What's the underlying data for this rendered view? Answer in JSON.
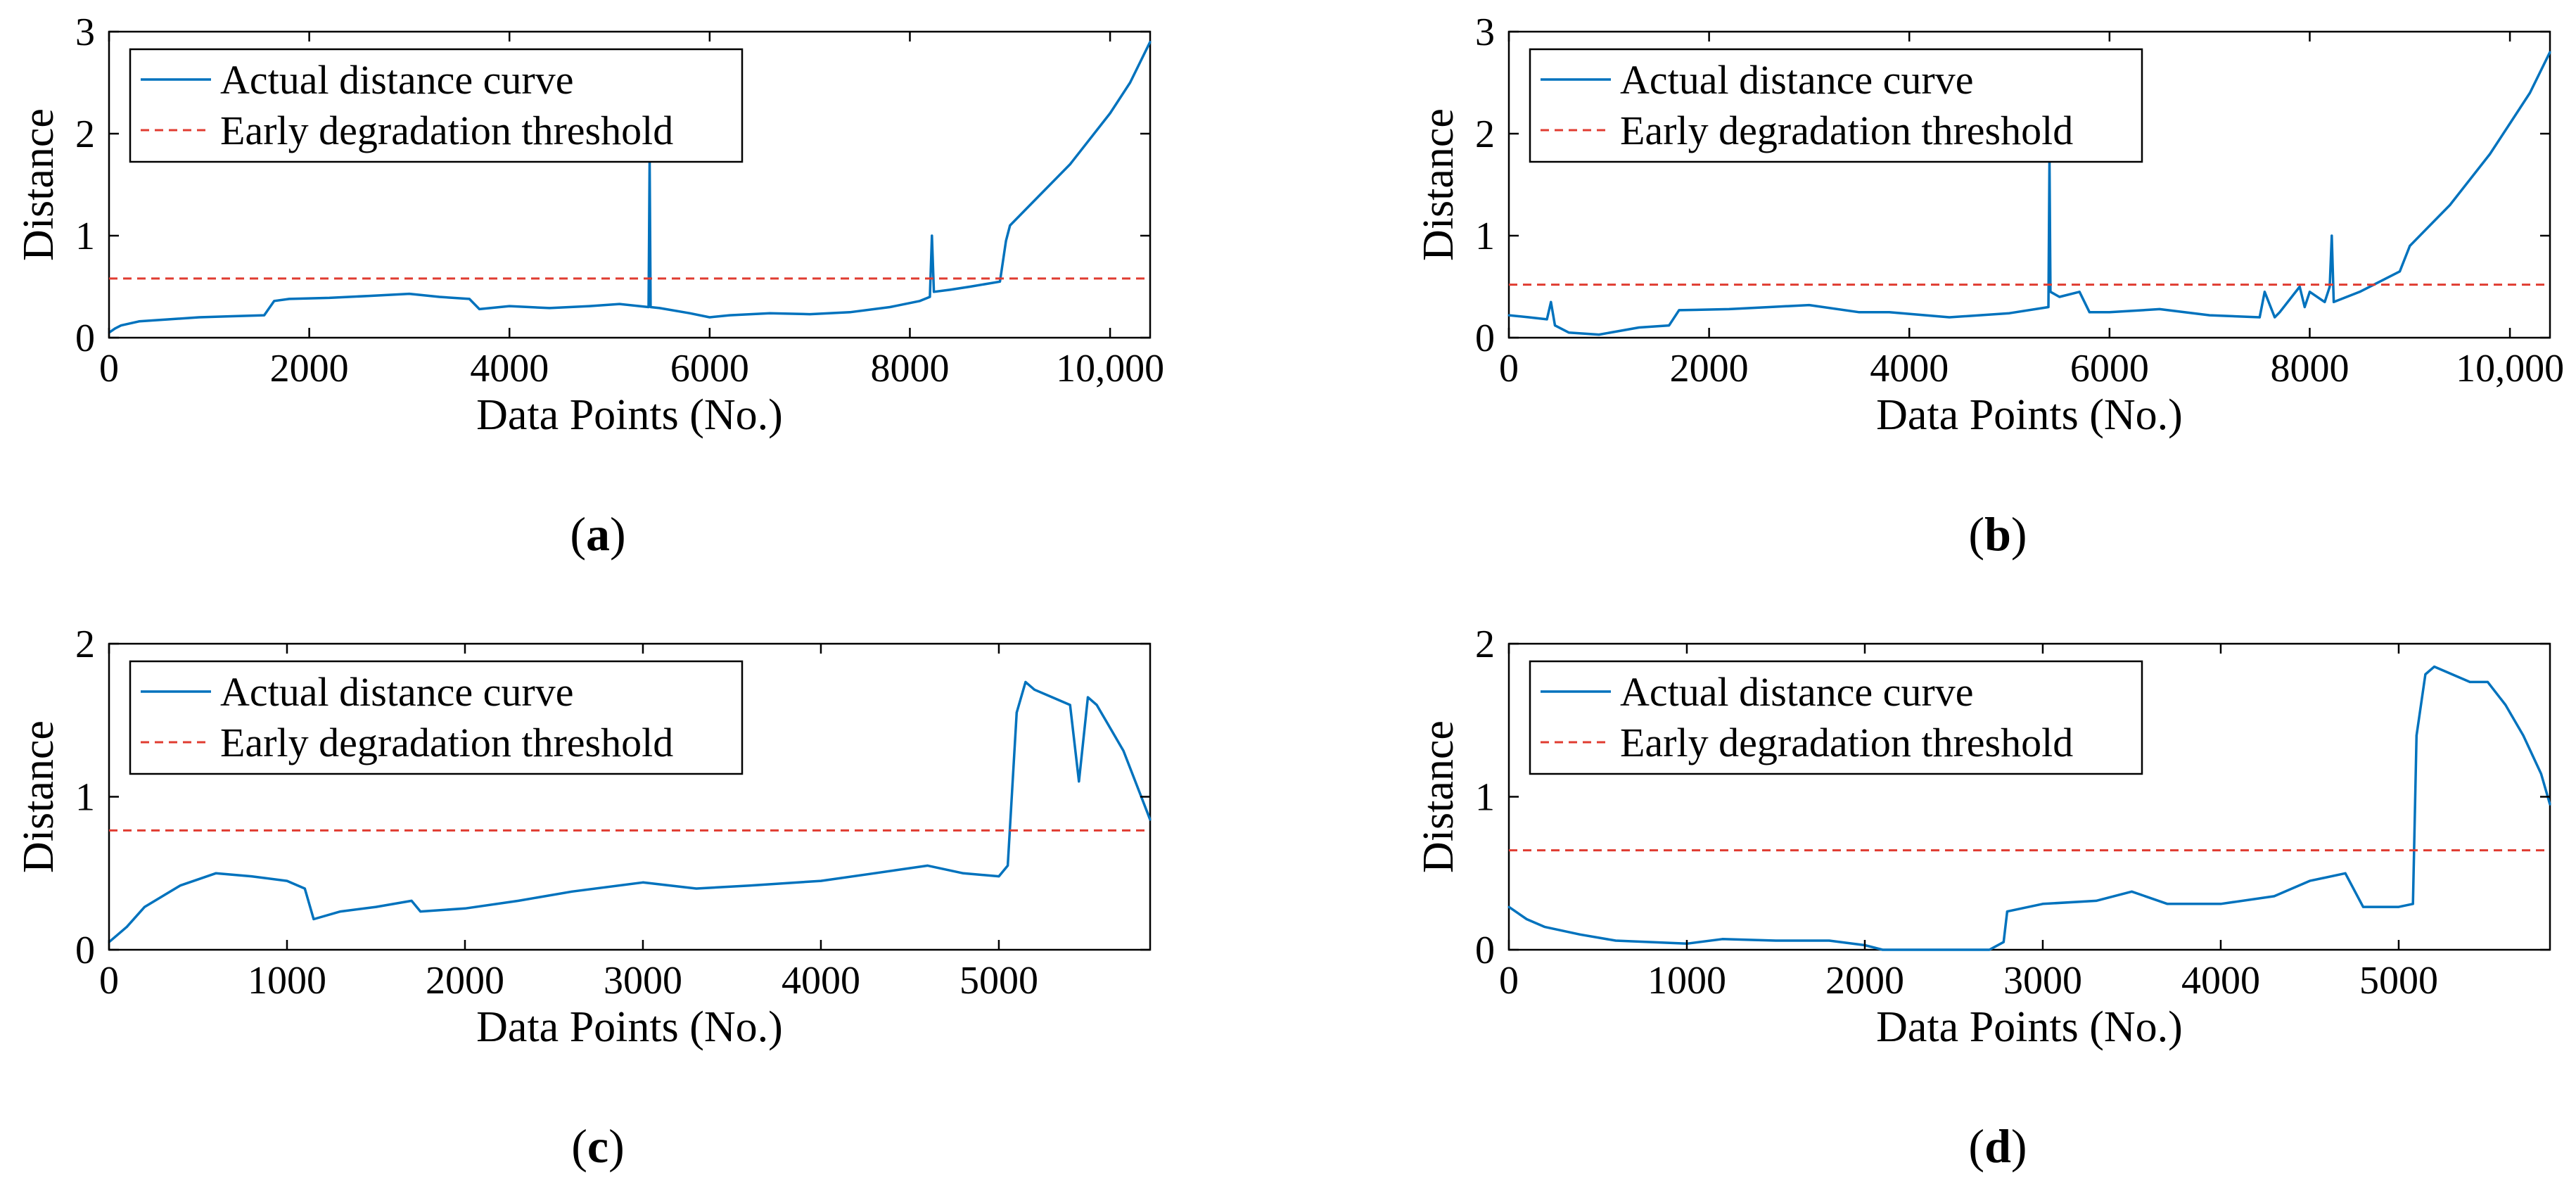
{
  "legend": {
    "actual_label": "Actual distance curve",
    "threshold_label": "Early degradation threshold"
  },
  "colors": {
    "curve": "#0072BD",
    "threshold": "#E03C31",
    "axes": "#000000"
  },
  "chart_data": [
    {
      "id": "a",
      "type": "line",
      "caption": "a",
      "xlabel": "Data Points (No.)",
      "ylabel": "Distance",
      "xlim": [
        0,
        10400
      ],
      "ylim": [
        0,
        3
      ],
      "xticks": [
        0,
        2000,
        4000,
        6000,
        8000,
        10000
      ],
      "xticklabels": [
        "0",
        "2000",
        "4000",
        "6000",
        "8000",
        "10,000"
      ],
      "yticks": [
        0,
        1,
        2,
        3
      ],
      "yticklabels": [
        "0",
        "1",
        "2",
        "3"
      ],
      "threshold": 0.58,
      "series": [
        {
          "name": "Actual distance curve",
          "x": [
            0,
            60,
            120,
            300,
            600,
            900,
            1200,
            1550,
            1650,
            1800,
            2200,
            2600,
            3000,
            3300,
            3600,
            3700,
            4000,
            4400,
            4800,
            5100,
            5390,
            5400,
            5410,
            5500,
            5800,
            6000,
            6200,
            6600,
            7000,
            7400,
            7800,
            8100,
            8200,
            8220,
            8240,
            8400,
            8600,
            8900,
            8960,
            9000,
            9200,
            9400,
            9600,
            9800,
            10000,
            10200,
            10400
          ],
          "y": [
            0.05,
            0.09,
            0.12,
            0.16,
            0.18,
            0.2,
            0.21,
            0.22,
            0.36,
            0.38,
            0.39,
            0.41,
            0.43,
            0.4,
            0.38,
            0.28,
            0.31,
            0.29,
            0.31,
            0.33,
            0.3,
            1.75,
            0.3,
            0.29,
            0.24,
            0.2,
            0.22,
            0.24,
            0.23,
            0.25,
            0.3,
            0.36,
            0.4,
            1.0,
            0.45,
            0.47,
            0.5,
            0.55,
            0.95,
            1.1,
            1.3,
            1.5,
            1.7,
            1.95,
            2.2,
            2.5,
            2.9
          ]
        }
      ]
    },
    {
      "id": "b",
      "type": "line",
      "caption": "b",
      "xlabel": "Data Points (No.)",
      "ylabel": "Distance",
      "xlim": [
        0,
        10400
      ],
      "ylim": [
        0,
        3
      ],
      "xticks": [
        0,
        2000,
        4000,
        6000,
        8000,
        10000
      ],
      "xticklabels": [
        "0",
        "2000",
        "4000",
        "6000",
        "8000",
        "10,000"
      ],
      "yticks": [
        0,
        1,
        2,
        3
      ],
      "yticklabels": [
        "0",
        "1",
        "2",
        "3"
      ],
      "threshold": 0.52,
      "series": [
        {
          "name": "Actual distance curve",
          "x": [
            0,
            200,
            380,
            420,
            460,
            600,
            900,
            1300,
            1600,
            1700,
            2200,
            2600,
            3000,
            3500,
            3800,
            4400,
            5000,
            5390,
            5400,
            5410,
            5500,
            5700,
            5800,
            6000,
            6500,
            7000,
            7500,
            7550,
            7650,
            7700,
            7900,
            7950,
            8000,
            8150,
            8200,
            8220,
            8240,
            8500,
            8900,
            9000,
            9200,
            9400,
            9600,
            9800,
            10000,
            10200,
            10400
          ],
          "y": [
            0.22,
            0.2,
            0.18,
            0.35,
            0.12,
            0.05,
            0.03,
            0.1,
            0.12,
            0.27,
            0.28,
            0.3,
            0.32,
            0.25,
            0.25,
            0.2,
            0.24,
            0.3,
            1.75,
            0.45,
            0.4,
            0.45,
            0.25,
            0.25,
            0.28,
            0.22,
            0.2,
            0.45,
            0.2,
            0.25,
            0.5,
            0.3,
            0.45,
            0.35,
            0.5,
            1.0,
            0.35,
            0.45,
            0.65,
            0.9,
            1.1,
            1.3,
            1.55,
            1.8,
            2.1,
            2.4,
            2.8
          ]
        }
      ]
    },
    {
      "id": "c",
      "type": "line",
      "caption": "c",
      "xlabel": "Data Points (No.)",
      "ylabel": "Distance",
      "xlim": [
        0,
        5850
      ],
      "ylim": [
        0,
        2
      ],
      "xticks": [
        0,
        1000,
        2000,
        3000,
        4000,
        5000
      ],
      "xticklabels": [
        "0",
        "1000",
        "2000",
        "3000",
        "4000",
        "5000"
      ],
      "yticks": [
        0,
        1,
        2
      ],
      "yticklabels": [
        "0",
        "1",
        "2"
      ],
      "threshold": 0.78,
      "series": [
        {
          "name": "Actual distance curve",
          "x": [
            0,
            50,
            100,
            200,
            400,
            600,
            800,
            1000,
            1100,
            1150,
            1300,
            1500,
            1700,
            1750,
            2000,
            2300,
            2600,
            3000,
            3300,
            3600,
            4000,
            4300,
            4600,
            4800,
            5000,
            5050,
            5100,
            5150,
            5200,
            5300,
            5400,
            5450,
            5500,
            5550,
            5600,
            5700,
            5800,
            5850
          ],
          "y": [
            0.05,
            0.1,
            0.15,
            0.28,
            0.42,
            0.5,
            0.48,
            0.45,
            0.4,
            0.2,
            0.25,
            0.28,
            0.32,
            0.25,
            0.27,
            0.32,
            0.38,
            0.44,
            0.4,
            0.42,
            0.45,
            0.5,
            0.55,
            0.5,
            0.48,
            0.55,
            1.55,
            1.75,
            1.7,
            1.65,
            1.6,
            1.1,
            1.65,
            1.6,
            1.5,
            1.3,
            1.0,
            0.85
          ]
        }
      ]
    },
    {
      "id": "d",
      "type": "line",
      "caption": "d",
      "xlabel": "Data Points (No.)",
      "ylabel": "Distance",
      "xlim": [
        0,
        5850
      ],
      "ylim": [
        0,
        2
      ],
      "xticks": [
        0,
        1000,
        2000,
        3000,
        4000,
        5000
      ],
      "xticklabels": [
        "0",
        "1000",
        "2000",
        "3000",
        "4000",
        "5000"
      ],
      "yticks": [
        0,
        1,
        2
      ],
      "yticklabels": [
        "0",
        "1",
        "2"
      ],
      "threshold": 0.65,
      "series": [
        {
          "name": "Actual distance curve",
          "x": [
            0,
            100,
            200,
            400,
            600,
            800,
            1000,
            1200,
            1500,
            1800,
            2000,
            2100,
            2300,
            2500,
            2700,
            2780,
            2800,
            3000,
            3300,
            3500,
            3700,
            4000,
            4300,
            4500,
            4700,
            4800,
            5000,
            5080,
            5100,
            5150,
            5200,
            5300,
            5400,
            5500,
            5600,
            5700,
            5800,
            5850
          ],
          "y": [
            0.28,
            0.2,
            0.15,
            0.1,
            0.06,
            0.05,
            0.04,
            0.07,
            0.06,
            0.06,
            0.03,
            0.0,
            0.0,
            0.0,
            0.0,
            0.05,
            0.25,
            0.3,
            0.32,
            0.38,
            0.3,
            0.3,
            0.35,
            0.45,
            0.5,
            0.28,
            0.28,
            0.3,
            1.4,
            1.8,
            1.85,
            1.8,
            1.75,
            1.75,
            1.6,
            1.4,
            1.15,
            0.95
          ]
        }
      ]
    }
  ]
}
